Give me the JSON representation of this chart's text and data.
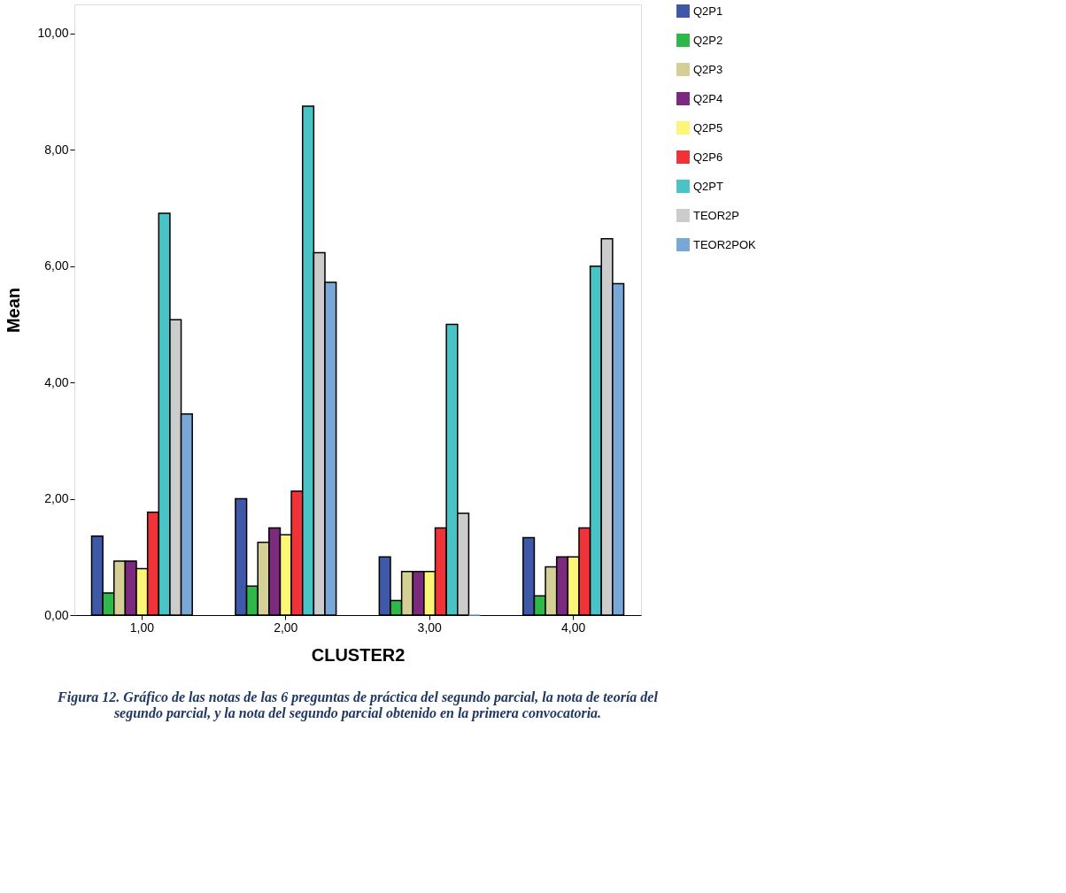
{
  "chart_data": {
    "type": "bar",
    "xlabel": "CLUSTER2",
    "ylabel": "Mean",
    "categories": [
      "1,00",
      "2,00",
      "3,00",
      "4,00"
    ],
    "series": [
      {
        "name": "Q2P1",
        "color": "#3f58a8",
        "values": [
          1.36,
          2.0,
          1.0,
          1.33
        ]
      },
      {
        "name": "Q2P2",
        "color": "#2fb84a",
        "values": [
          0.38,
          0.5,
          0.25,
          0.33
        ]
      },
      {
        "name": "Q2P3",
        "color": "#d4cf94",
        "values": [
          0.93,
          1.25,
          0.75,
          0.83
        ]
      },
      {
        "name": "Q2P4",
        "color": "#7b2a7e",
        "values": [
          0.93,
          1.5,
          0.75,
          1.0
        ]
      },
      {
        "name": "Q2P5",
        "color": "#fbf677",
        "values": [
          0.8,
          1.38,
          0.75,
          1.0
        ]
      },
      {
        "name": "Q2P6",
        "color": "#ef3339",
        "values": [
          1.77,
          2.13,
          1.5,
          1.5
        ]
      },
      {
        "name": "Q2PT",
        "color": "#4ac3c6",
        "values": [
          6.91,
          8.75,
          5.0,
          6.0
        ]
      },
      {
        "name": "TEOR2P",
        "color": "#cccccc",
        "values": [
          5.08,
          6.23,
          1.75,
          6.47
        ]
      },
      {
        "name": "TEOR2POK",
        "color": "#79a8d6",
        "values": [
          3.46,
          5.72,
          0.0,
          5.7
        ]
      }
    ],
    "ylim": [
      0,
      10.5
    ],
    "yticks": [
      {
        "value": 0,
        "label": "0,00"
      },
      {
        "value": 2,
        "label": "2,00"
      },
      {
        "value": 4,
        "label": "4,00"
      },
      {
        "value": 6,
        "label": "6,00"
      },
      {
        "value": 8,
        "label": "8,00"
      },
      {
        "value": 10,
        "label": "10,00"
      }
    ],
    "grid": false,
    "legend": "top right",
    "annotations": [
      "Figura 12. Gráfico de las notas de las 6 preguntas de práctica del segundo parcial, la nota de teoría del segundo parcial, y la nota del segundo parcial obtenido en la primera convocatoria."
    ]
  }
}
